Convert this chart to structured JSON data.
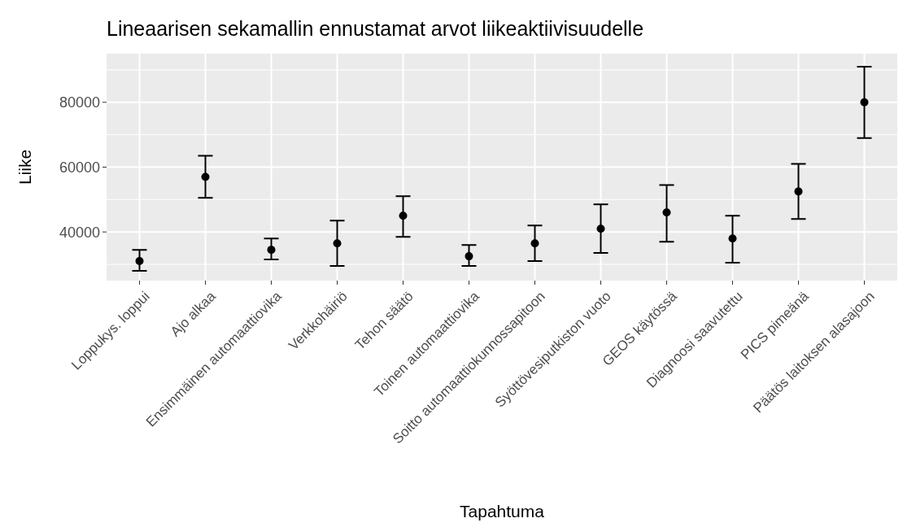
{
  "chart_data": {
    "type": "scatter",
    "title": "Lineaarisen sekamallin ennustamat arvot liikeaktiivisuudelle",
    "xlabel": "Tapahtuma",
    "ylabel": "Liike",
    "categories": [
      "Loppukys. loppui",
      "Ajo alkaa",
      "Ensimmäinen automaattiovika",
      "Verkkohäiriö",
      "Tehon säätö",
      "Toinen automaattiovika",
      "Soitto automaattiokunnossapitoon",
      "Syöttövesiputkiston vuoto",
      "GEOS käytössä",
      "Diagnoosi saavutettu",
      "PICS pimeänä",
      "Päätös laitoksen alasajoon"
    ],
    "values": [
      31000,
      57000,
      34500,
      36500,
      45000,
      32500,
      36500,
      41000,
      46000,
      38000,
      52500,
      80000
    ],
    "errors": [
      [
        28000,
        34500
      ],
      [
        50500,
        63500
      ],
      [
        31500,
        38000
      ],
      [
        29500,
        43500
      ],
      [
        38500,
        51000
      ],
      [
        29500,
        36000
      ],
      [
        31000,
        42000
      ],
      [
        33500,
        48500
      ],
      [
        37000,
        54500
      ],
      [
        30500,
        45000
      ],
      [
        44000,
        61000
      ],
      [
        69000,
        91000
      ]
    ],
    "color": "#000000",
    "marker": "circle",
    "ylim": [
      25000,
      95000
    ],
    "yticks": [
      40000,
      60000,
      80000
    ],
    "grid": true
  }
}
